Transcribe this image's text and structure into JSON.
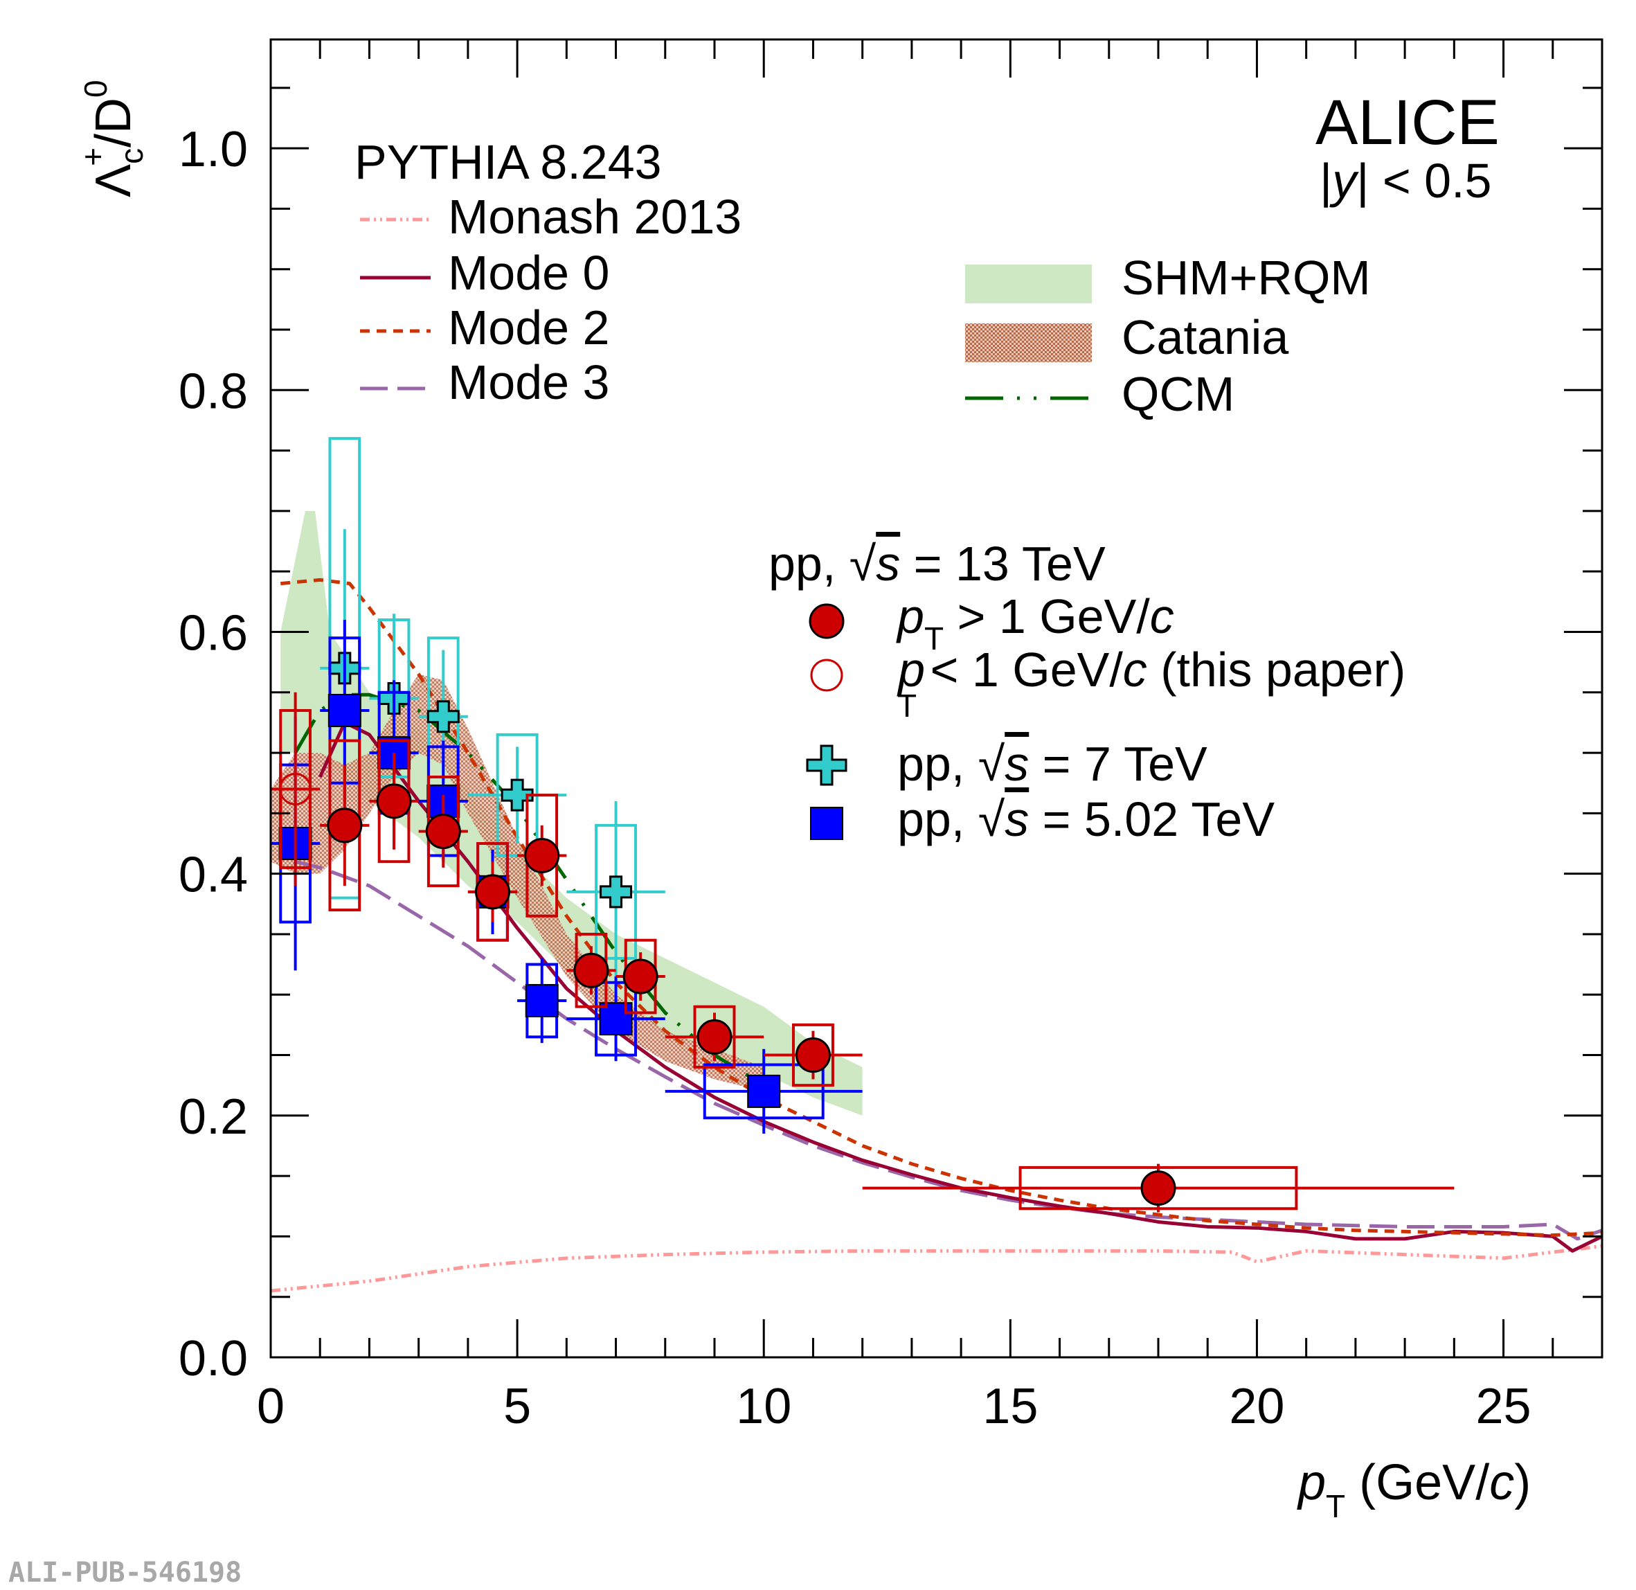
{
  "chart_data": {
    "type": "scatter",
    "xlabel": "p",
    "xlabel_sub": "T",
    "xlabel_unit_open": " (GeV/",
    "xlabel_unit_c": "c",
    "xlabel_unit_close": ")",
    "ylabel_main": "Λ",
    "ylabel_sub": "c",
    "ylabel_sup": "+",
    "ylabel_rest": "/D",
    "ylabel_rest_sup": "0",
    "xlim": [
      0,
      27
    ],
    "ylim": [
      0,
      1.09
    ],
    "xticks": [
      0,
      5,
      10,
      15,
      20,
      25
    ],
    "xtick_labels": [
      "0",
      "5",
      "10",
      "15",
      "20",
      "25"
    ],
    "yticks": [
      0.0,
      0.2,
      0.4,
      0.6,
      0.8,
      1.0
    ],
    "ytick_labels": [
      "0.0",
      "0.2",
      "0.4",
      "0.6",
      "0.8",
      "1.0"
    ],
    "experiment": "ALICE",
    "rapidity_pre": "|",
    "rapidity_y": "y",
    "rapidity_post": "| < 0.5",
    "pythia_title": "PYTHIA 8.243",
    "legend_models": {
      "monash": "Monash 2013",
      "mode0": "Mode 0",
      "mode2": "Mode 2",
      "mode3": "Mode 3",
      "shm": "SHM+RQM",
      "catania": "Catania",
      "qcm": "QCM"
    },
    "legend_data": {
      "header_pre": "pp, ",
      "header_s": "s",
      "header_post": " = 13 TeV",
      "high_p": "p",
      "high_sub": "T",
      "high_rest": " > 1 GeV/",
      "high_c": "c",
      "low_p": "p",
      "low_sub": "T",
      "low_rest": " < 1 GeV/",
      "low_c": "c",
      "low_tail": " (this paper)",
      "pp7_pre": "pp, ",
      "pp7_s": "s",
      "pp7_post": " = 7 TeV",
      "pp5_pre": "pp, ",
      "pp5_s": "s",
      "pp5_post": " = 5.02 TeV"
    },
    "colors": {
      "pp13": "#cc0000",
      "pp7": "#33cccc",
      "pp5": "#0000ff",
      "monash": "#ff9999",
      "mode0": "#990033",
      "mode2": "#cc3300",
      "mode3": "#9966aa",
      "shm": "#cfe8c4",
      "catania": "#b8694a",
      "qcm": "#006600"
    },
    "series": [
      {
        "name": "pp13_high",
        "points": [
          {
            "x": 1.5,
            "y": 0.44,
            "xerr": 0.5,
            "stat": 0.05,
            "syst": 0.07
          },
          {
            "x": 2.5,
            "y": 0.46,
            "xerr": 0.5,
            "stat": 0.04,
            "syst": 0.05
          },
          {
            "x": 3.5,
            "y": 0.435,
            "xerr": 0.5,
            "stat": 0.03,
            "syst": 0.045
          },
          {
            "x": 4.5,
            "y": 0.385,
            "xerr": 0.5,
            "stat": 0.025,
            "syst": 0.04
          },
          {
            "x": 5.5,
            "y": 0.415,
            "xerr": 0.5,
            "stat": 0.025,
            "syst": 0.05
          },
          {
            "x": 6.5,
            "y": 0.32,
            "xerr": 0.5,
            "stat": 0.02,
            "syst": 0.03
          },
          {
            "x": 7.5,
            "y": 0.315,
            "xerr": 0.5,
            "stat": 0.02,
            "syst": 0.03
          },
          {
            "x": 9.0,
            "y": 0.265,
            "xerr": 1.0,
            "stat": 0.02,
            "syst": 0.025
          },
          {
            "x": 11.0,
            "y": 0.25,
            "xerr": 1.0,
            "stat": 0.02,
            "syst": 0.025
          },
          {
            "x": 18.0,
            "y": 0.14,
            "xerr": 6.0,
            "stat": 0.02,
            "syst": 0.017
          }
        ]
      },
      {
        "name": "pp13_low",
        "points": [
          {
            "x": 0.5,
            "y": 0.47,
            "xerr": 0.5,
            "stat": 0.08,
            "syst": 0.065
          }
        ]
      },
      {
        "name": "pp7",
        "points": [
          {
            "x": 1.5,
            "y": 0.57,
            "xerr": 0.5,
            "stat": 0.115,
            "syst": 0.19
          },
          {
            "x": 2.5,
            "y": 0.545,
            "xerr": 0.5,
            "stat": 0.07,
            "syst": 0.065
          },
          {
            "x": 3.5,
            "y": 0.53,
            "xerr": 0.5,
            "stat": 0.055,
            "syst": 0.065
          },
          {
            "x": 5.0,
            "y": 0.465,
            "xerr": 1.0,
            "stat": 0.04,
            "syst": 0.05
          },
          {
            "x": 7.0,
            "y": 0.385,
            "xerr": 1.0,
            "stat": 0.075,
            "syst": 0.055
          }
        ]
      },
      {
        "name": "pp5",
        "points": [
          {
            "x": 0.5,
            "y": 0.425,
            "xerr": 0.5,
            "stat": 0.105,
            "syst": 0.065
          },
          {
            "x": 1.5,
            "y": 0.535,
            "xerr": 0.5,
            "stat": 0.075,
            "syst": 0.06
          },
          {
            "x": 2.5,
            "y": 0.5,
            "xerr": 0.5,
            "stat": 0.06,
            "syst": 0.05
          },
          {
            "x": 3.5,
            "y": 0.46,
            "xerr": 0.5,
            "stat": 0.05,
            "syst": 0.045
          },
          {
            "x": 4.5,
            "y": 0.385,
            "xerr": 0.5,
            "stat": 0.035,
            "syst": 0.04
          },
          {
            "x": 5.5,
            "y": 0.295,
            "xerr": 0.5,
            "stat": 0.035,
            "syst": 0.03
          },
          {
            "x": 7.0,
            "y": 0.28,
            "xerr": 1.0,
            "stat": 0.035,
            "syst": 0.03
          },
          {
            "x": 10.0,
            "y": 0.22,
            "xerr": 2.0,
            "stat": 0.035,
            "syst": 0.022
          }
        ]
      }
    ],
    "curves": {
      "monash": [
        [
          0,
          0.055
        ],
        [
          2,
          0.063
        ],
        [
          4,
          0.075
        ],
        [
          6,
          0.082
        ],
        [
          8,
          0.085
        ],
        [
          10,
          0.087
        ],
        [
          12,
          0.088
        ],
        [
          14,
          0.088
        ],
        [
          16,
          0.088
        ],
        [
          18,
          0.088
        ],
        [
          19.5,
          0.087
        ],
        [
          20,
          0.079
        ],
        [
          21,
          0.088
        ],
        [
          23,
          0.085
        ],
        [
          25,
          0.082
        ],
        [
          27,
          0.092
        ]
      ],
      "mode0": [
        [
          1,
          0.48
        ],
        [
          1.5,
          0.525
        ],
        [
          2,
          0.515
        ],
        [
          3,
          0.46
        ],
        [
          4,
          0.41
        ],
        [
          5,
          0.355
        ],
        [
          6,
          0.305
        ],
        [
          7,
          0.27
        ],
        [
          8,
          0.24
        ],
        [
          9,
          0.215
        ],
        [
          10,
          0.195
        ],
        [
          11,
          0.178
        ],
        [
          12,
          0.163
        ],
        [
          13,
          0.151
        ],
        [
          14,
          0.14
        ],
        [
          15,
          0.132
        ],
        [
          16,
          0.125
        ],
        [
          17,
          0.119
        ],
        [
          18,
          0.112
        ],
        [
          19,
          0.108
        ],
        [
          20,
          0.107
        ],
        [
          21,
          0.104
        ],
        [
          22,
          0.098
        ],
        [
          23,
          0.098
        ],
        [
          24,
          0.104
        ],
        [
          25,
          0.103
        ],
        [
          26,
          0.1
        ],
        [
          26.4,
          0.088
        ],
        [
          27,
          0.1
        ]
      ],
      "mode2": [
        [
          0.2,
          0.64
        ],
        [
          1,
          0.643
        ],
        [
          1.6,
          0.64
        ],
        [
          2,
          0.62
        ],
        [
          3,
          0.565
        ],
        [
          4,
          0.5
        ],
        [
          5,
          0.43
        ],
        [
          6,
          0.365
        ],
        [
          7,
          0.31
        ],
        [
          8,
          0.27
        ],
        [
          9,
          0.24
        ],
        [
          10,
          0.215
        ],
        [
          11,
          0.195
        ],
        [
          12,
          0.175
        ],
        [
          13,
          0.16
        ],
        [
          14,
          0.148
        ],
        [
          15,
          0.138
        ],
        [
          16,
          0.13
        ],
        [
          17,
          0.123
        ],
        [
          18,
          0.118
        ],
        [
          19,
          0.113
        ],
        [
          20,
          0.11
        ],
        [
          21,
          0.107
        ],
        [
          22,
          0.105
        ],
        [
          23,
          0.104
        ],
        [
          24,
          0.103
        ],
        [
          25,
          0.102
        ],
        [
          26,
          0.101
        ],
        [
          27,
          0.103
        ]
      ],
      "mode3": [
        [
          0.5,
          0.41
        ],
        [
          1,
          0.405
        ],
        [
          2,
          0.39
        ],
        [
          3,
          0.365
        ],
        [
          4,
          0.34
        ],
        [
          5,
          0.31
        ],
        [
          6,
          0.28
        ],
        [
          7,
          0.255
        ],
        [
          8,
          0.232
        ],
        [
          9,
          0.21
        ],
        [
          10,
          0.192
        ],
        [
          11,
          0.175
        ],
        [
          12,
          0.161
        ],
        [
          13,
          0.149
        ],
        [
          14,
          0.138
        ],
        [
          15,
          0.13
        ],
        [
          16,
          0.124
        ],
        [
          17,
          0.119
        ],
        [
          18,
          0.116
        ],
        [
          19,
          0.114
        ],
        [
          20,
          0.112
        ],
        [
          21,
          0.11
        ],
        [
          22,
          0.109
        ],
        [
          23,
          0.108
        ],
        [
          24,
          0.108
        ],
        [
          25,
          0.108
        ],
        [
          26,
          0.11
        ],
        [
          26.5,
          0.098
        ],
        [
          27,
          0.105
        ]
      ],
      "qcm": [
        [
          0.5,
          0.5
        ],
        [
          1,
          0.535
        ],
        [
          1.5,
          0.548
        ],
        [
          2,
          0.548
        ],
        [
          3,
          0.535
        ],
        [
          4,
          0.5
        ],
        [
          5,
          0.455
        ],
        [
          6,
          0.395
        ],
        [
          7,
          0.335
        ],
        [
          8,
          0.285
        ],
        [
          9,
          0.25
        ],
        [
          10,
          0.225
        ]
      ]
    },
    "bands": {
      "shm": {
        "upper": [
          [
            0.2,
            0.6
          ],
          [
            0.5,
            0.66
          ],
          [
            0.7,
            0.7
          ],
          [
            0.9,
            0.7
          ],
          [
            1.2,
            0.6
          ],
          [
            2,
            0.55
          ],
          [
            3,
            0.52
          ],
          [
            4,
            0.47
          ],
          [
            5,
            0.42
          ],
          [
            6,
            0.38
          ],
          [
            7,
            0.35
          ],
          [
            8,
            0.33
          ],
          [
            9,
            0.31
          ],
          [
            10,
            0.29
          ],
          [
            11,
            0.26
          ],
          [
            12,
            0.24
          ]
        ],
        "lower": [
          [
            0.2,
            0.5
          ],
          [
            0.5,
            0.5
          ],
          [
            1,
            0.5
          ],
          [
            2,
            0.46
          ],
          [
            3,
            0.43
          ],
          [
            4,
            0.39
          ],
          [
            5,
            0.36
          ],
          [
            6,
            0.32
          ],
          [
            7,
            0.29
          ],
          [
            8,
            0.27
          ],
          [
            9,
            0.25
          ],
          [
            10,
            0.235
          ],
          [
            11,
            0.215
          ],
          [
            12,
            0.2
          ]
        ]
      },
      "catania": {
        "upper": [
          [
            0,
            0.47
          ],
          [
            0.5,
            0.5
          ],
          [
            1,
            0.5
          ],
          [
            1.5,
            0.49
          ],
          [
            2,
            0.5
          ],
          [
            2.5,
            0.535
          ],
          [
            3,
            0.565
          ],
          [
            3.5,
            0.56
          ],
          [
            4,
            0.52
          ],
          [
            5,
            0.43
          ],
          [
            6,
            0.35
          ],
          [
            7,
            0.3
          ],
          [
            8,
            0.27
          ],
          [
            9,
            0.255
          ],
          [
            10,
            0.24
          ]
        ],
        "lower": [
          [
            0,
            0.41
          ],
          [
            0.5,
            0.4
          ],
          [
            1,
            0.4
          ],
          [
            1.5,
            0.42
          ],
          [
            2,
            0.45
          ],
          [
            2.5,
            0.48
          ],
          [
            3,
            0.5
          ],
          [
            3.5,
            0.49
          ],
          [
            4,
            0.45
          ],
          [
            5,
            0.38
          ],
          [
            6,
            0.315
          ],
          [
            7,
            0.27
          ],
          [
            8,
            0.245
          ],
          [
            9,
            0.23
          ],
          [
            10,
            0.22
          ]
        ]
      }
    }
  },
  "figure_id": "ALI-PUB-546198"
}
